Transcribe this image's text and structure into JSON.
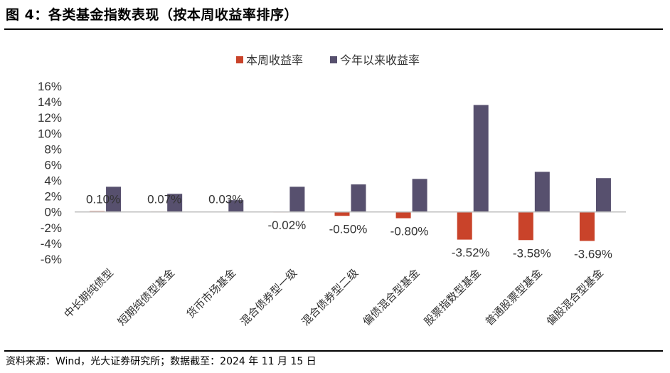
{
  "header": {
    "title": "图 4：各类基金指数表现（按本周收益率排序）"
  },
  "footer": {
    "source": "资料来源：Wind，光大证券研究所；数据截至：2024 年 11 月 15 日"
  },
  "chart_data": {
    "type": "bar",
    "categories": [
      "中长期纯债型",
      "短期纯债型基金",
      "货币市场基金",
      "混合债券型一级",
      "混合债券型二级",
      "偏债混合型基金",
      "股票指数型基金",
      "普通股票型基金",
      "偏股混合型基金"
    ],
    "series": [
      {
        "name": "本周收益率",
        "color": "#c9432a",
        "values": [
          0.1,
          0.07,
          0.03,
          -0.02,
          -0.5,
          -0.8,
          -3.52,
          -3.58,
          -3.69
        ],
        "labels": [
          "0.10%",
          "0.07%",
          "0.03%",
          "-0.02%",
          "-0.50%",
          "-0.80%",
          "-3.52%",
          "-3.58%",
          "-3.69%"
        ]
      },
      {
        "name": "今年以来收益率",
        "color": "#57506e",
        "values": [
          3.2,
          2.3,
          1.5,
          3.2,
          3.5,
          4.2,
          13.6,
          5.1,
          4.3
        ]
      }
    ],
    "y_ticks": [
      "16%",
      "14%",
      "12%",
      "10%",
      "8%",
      "6%",
      "4%",
      "2%",
      "0%",
      "-2%",
      "-4%",
      "-6%"
    ],
    "ylim": [
      -6,
      16
    ],
    "legend_position": "top-center",
    "grid": false
  }
}
